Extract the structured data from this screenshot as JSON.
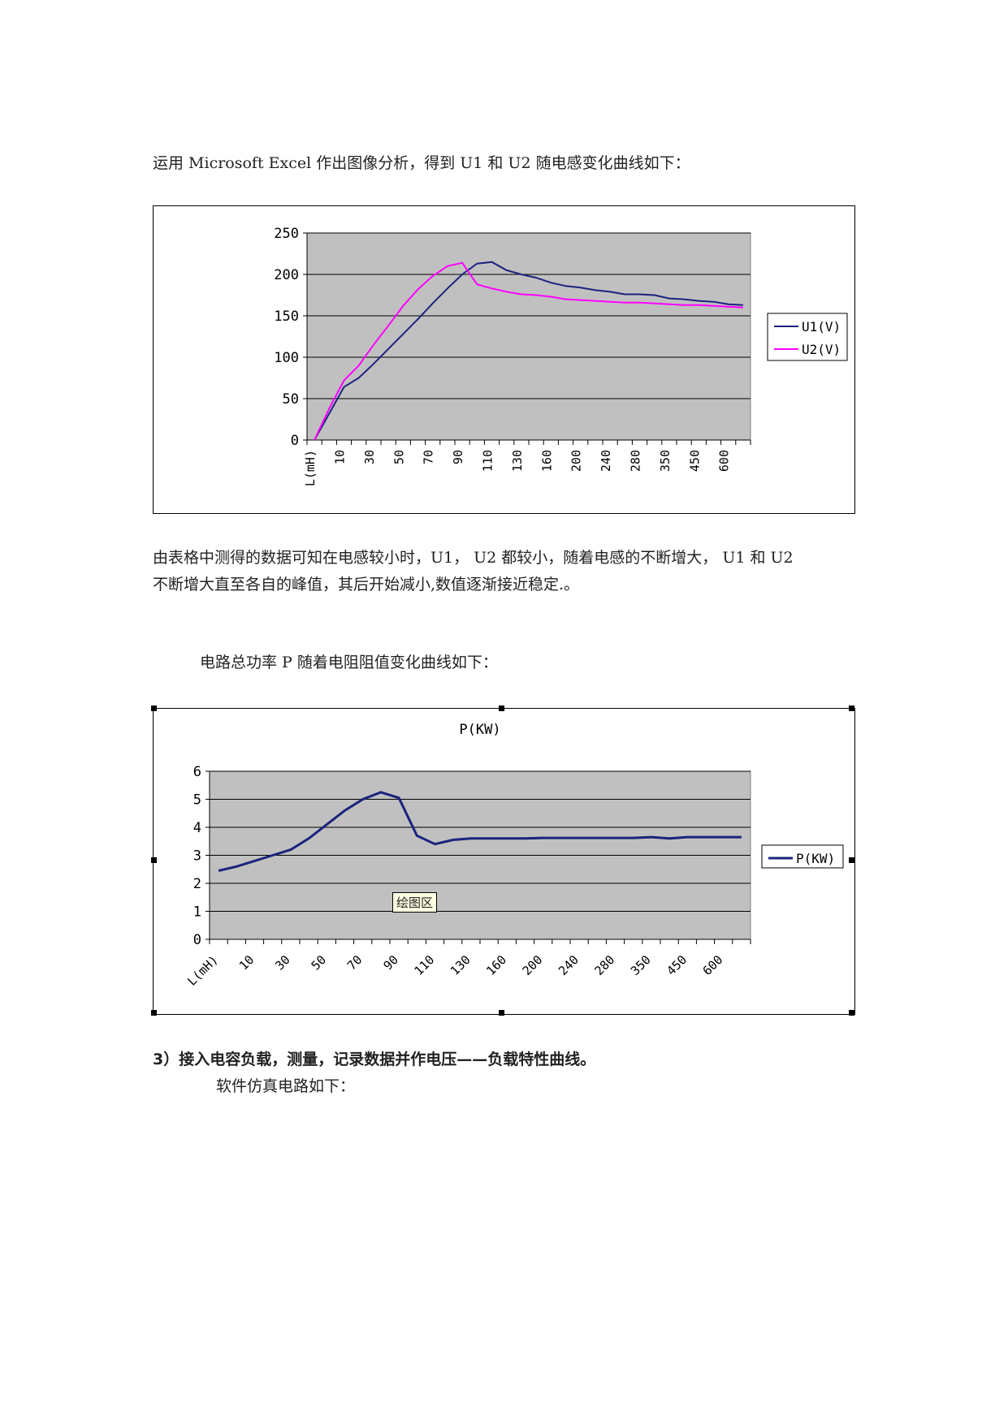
{
  "paragraphs": {
    "intro": "运用 Microsoft    Excel 作出图像分析，得到 U1 和 U2 随电感变化曲线如下：",
    "analysis_line1": "由表格中测得的数据可知在电感较小时，U1，   U2 都较小，随着电感的不断增大，   U1 和 U2",
    "analysis_line2": "不断增大直至各自的峰值，其后开始减小,数值逐渐接近稳定.。",
    "power_intro": "电路总功率 P 随着电阻阻值变化曲线如下：",
    "section3_title": "3）接入电容负载，测量，记录数据并作电压——负载特性曲线。",
    "section3_sub": "软件仿真电路如下："
  },
  "colors": {
    "plot_bg": "#c0c0c0",
    "u1": "#1a237e",
    "u2": "#ff00ff",
    "p": "#1a237e"
  },
  "chart_data": [
    {
      "type": "line",
      "title": "",
      "xlabel": "",
      "ylabel": "",
      "categories": [
        "L(mH)",
        "",
        "10",
        "",
        "30",
        "",
        "50",
        "",
        "70",
        "",
        "90",
        "",
        "110",
        "",
        "130",
        "",
        "160",
        "",
        "200",
        "",
        "240",
        "",
        "280",
        "",
        "350",
        "",
        "450",
        "",
        "600",
        ""
      ],
      "ylim": [
        0,
        250
      ],
      "yticks": [
        0,
        50,
        100,
        150,
        200,
        250
      ],
      "grid": true,
      "legend": "right",
      "series": [
        {
          "name": "U1(V)",
          "color": "#1a237e",
          "values": [
            0,
            32,
            64,
            75,
            92,
            110,
            128,
            146,
            165,
            183,
            200,
            213,
            215,
            205,
            200,
            196,
            190,
            186,
            184,
            181,
            179,
            176,
            176,
            175,
            171,
            170,
            168,
            167,
            164,
            163
          ]
        },
        {
          "name": "U2(V)",
          "color": "#ff00ff",
          "values": [
            0,
            38,
            72,
            90,
            115,
            138,
            162,
            182,
            198,
            210,
            214,
            188,
            183,
            179,
            176,
            175,
            173,
            170,
            169,
            168,
            167,
            166,
            166,
            165,
            164,
            163,
            163,
            162,
            161,
            160
          ]
        }
      ]
    },
    {
      "type": "line",
      "title": "P(KW)",
      "xlabel": "",
      "ylabel": "",
      "categories": [
        "L(mH)",
        "",
        "10",
        "",
        "30",
        "",
        "50",
        "",
        "70",
        "",
        "90",
        "",
        "110",
        "",
        "130",
        "",
        "160",
        "",
        "200",
        "",
        "240",
        "",
        "280",
        "",
        "350",
        "",
        "450",
        "",
        "600",
        ""
      ],
      "ylim": [
        0,
        6
      ],
      "yticks": [
        0,
        1,
        2,
        3,
        4,
        5,
        6
      ],
      "grid": true,
      "legend": "right",
      "tooltip": "绘图区",
      "series": [
        {
          "name": "P(KW)",
          "color": "#1a237e",
          "values": [
            2.45,
            2.6,
            2.8,
            3.0,
            3.2,
            3.6,
            4.1,
            4.6,
            5.0,
            5.25,
            5.05,
            3.7,
            3.4,
            3.55,
            3.6,
            3.6,
            3.6,
            3.6,
            3.62,
            3.62,
            3.62,
            3.62,
            3.62,
            3.62,
            3.65,
            3.6,
            3.65,
            3.65,
            3.65,
            3.65
          ]
        }
      ]
    }
  ]
}
